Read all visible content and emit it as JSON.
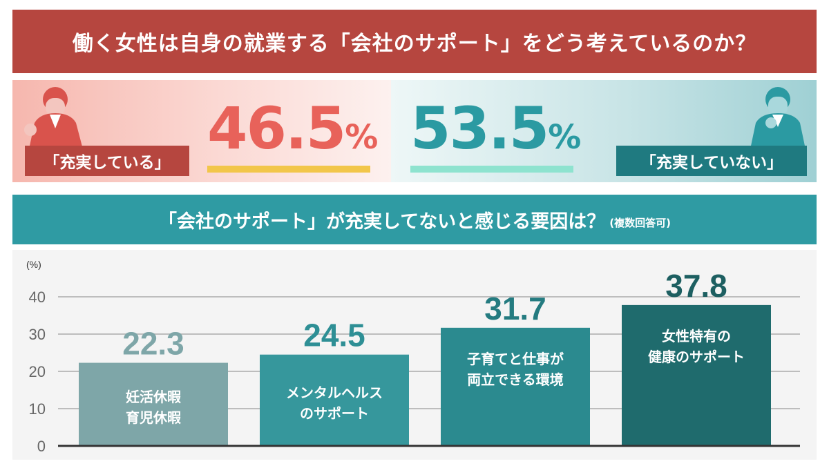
{
  "banner": {
    "title": "働く女性は自身の就業する「会社のサポート」をどう考えているのか？"
  },
  "compare": {
    "left": {
      "label": "「充実している」",
      "value": "46.5",
      "unit": "%",
      "color": "#e8625a"
    },
    "right": {
      "label": "「充実していない」",
      "value": "53.5",
      "unit": "%",
      "color": "#2b9aa2"
    }
  },
  "sub_banner": {
    "title": "「会社のサポート」が充実してないと感じる要因は？",
    "note": "(複数回答可)"
  },
  "chart_data": {
    "type": "bar",
    "unit": "(%)",
    "categories": [
      [
        "妊活休暇",
        "育児休暇"
      ],
      [
        "メンタルヘルス",
        "のサポート"
      ],
      [
        "子育てと仕事が",
        "両立できる環境"
      ],
      [
        "女性特有の",
        "健康のサポート"
      ]
    ],
    "values": [
      22.3,
      24.5,
      31.7,
      37.8
    ],
    "yticks": [
      0,
      10,
      20,
      30,
      40
    ],
    "ylim": [
      0,
      40
    ],
    "bar_colors": [
      "#7ea6a8",
      "#36979c",
      "#2b8a8f",
      "#1f6b6d"
    ],
    "label_colors": [
      "#7ea6a8",
      "#2e8f95",
      "#247b80",
      "#1d5f61"
    ],
    "grid": true
  }
}
